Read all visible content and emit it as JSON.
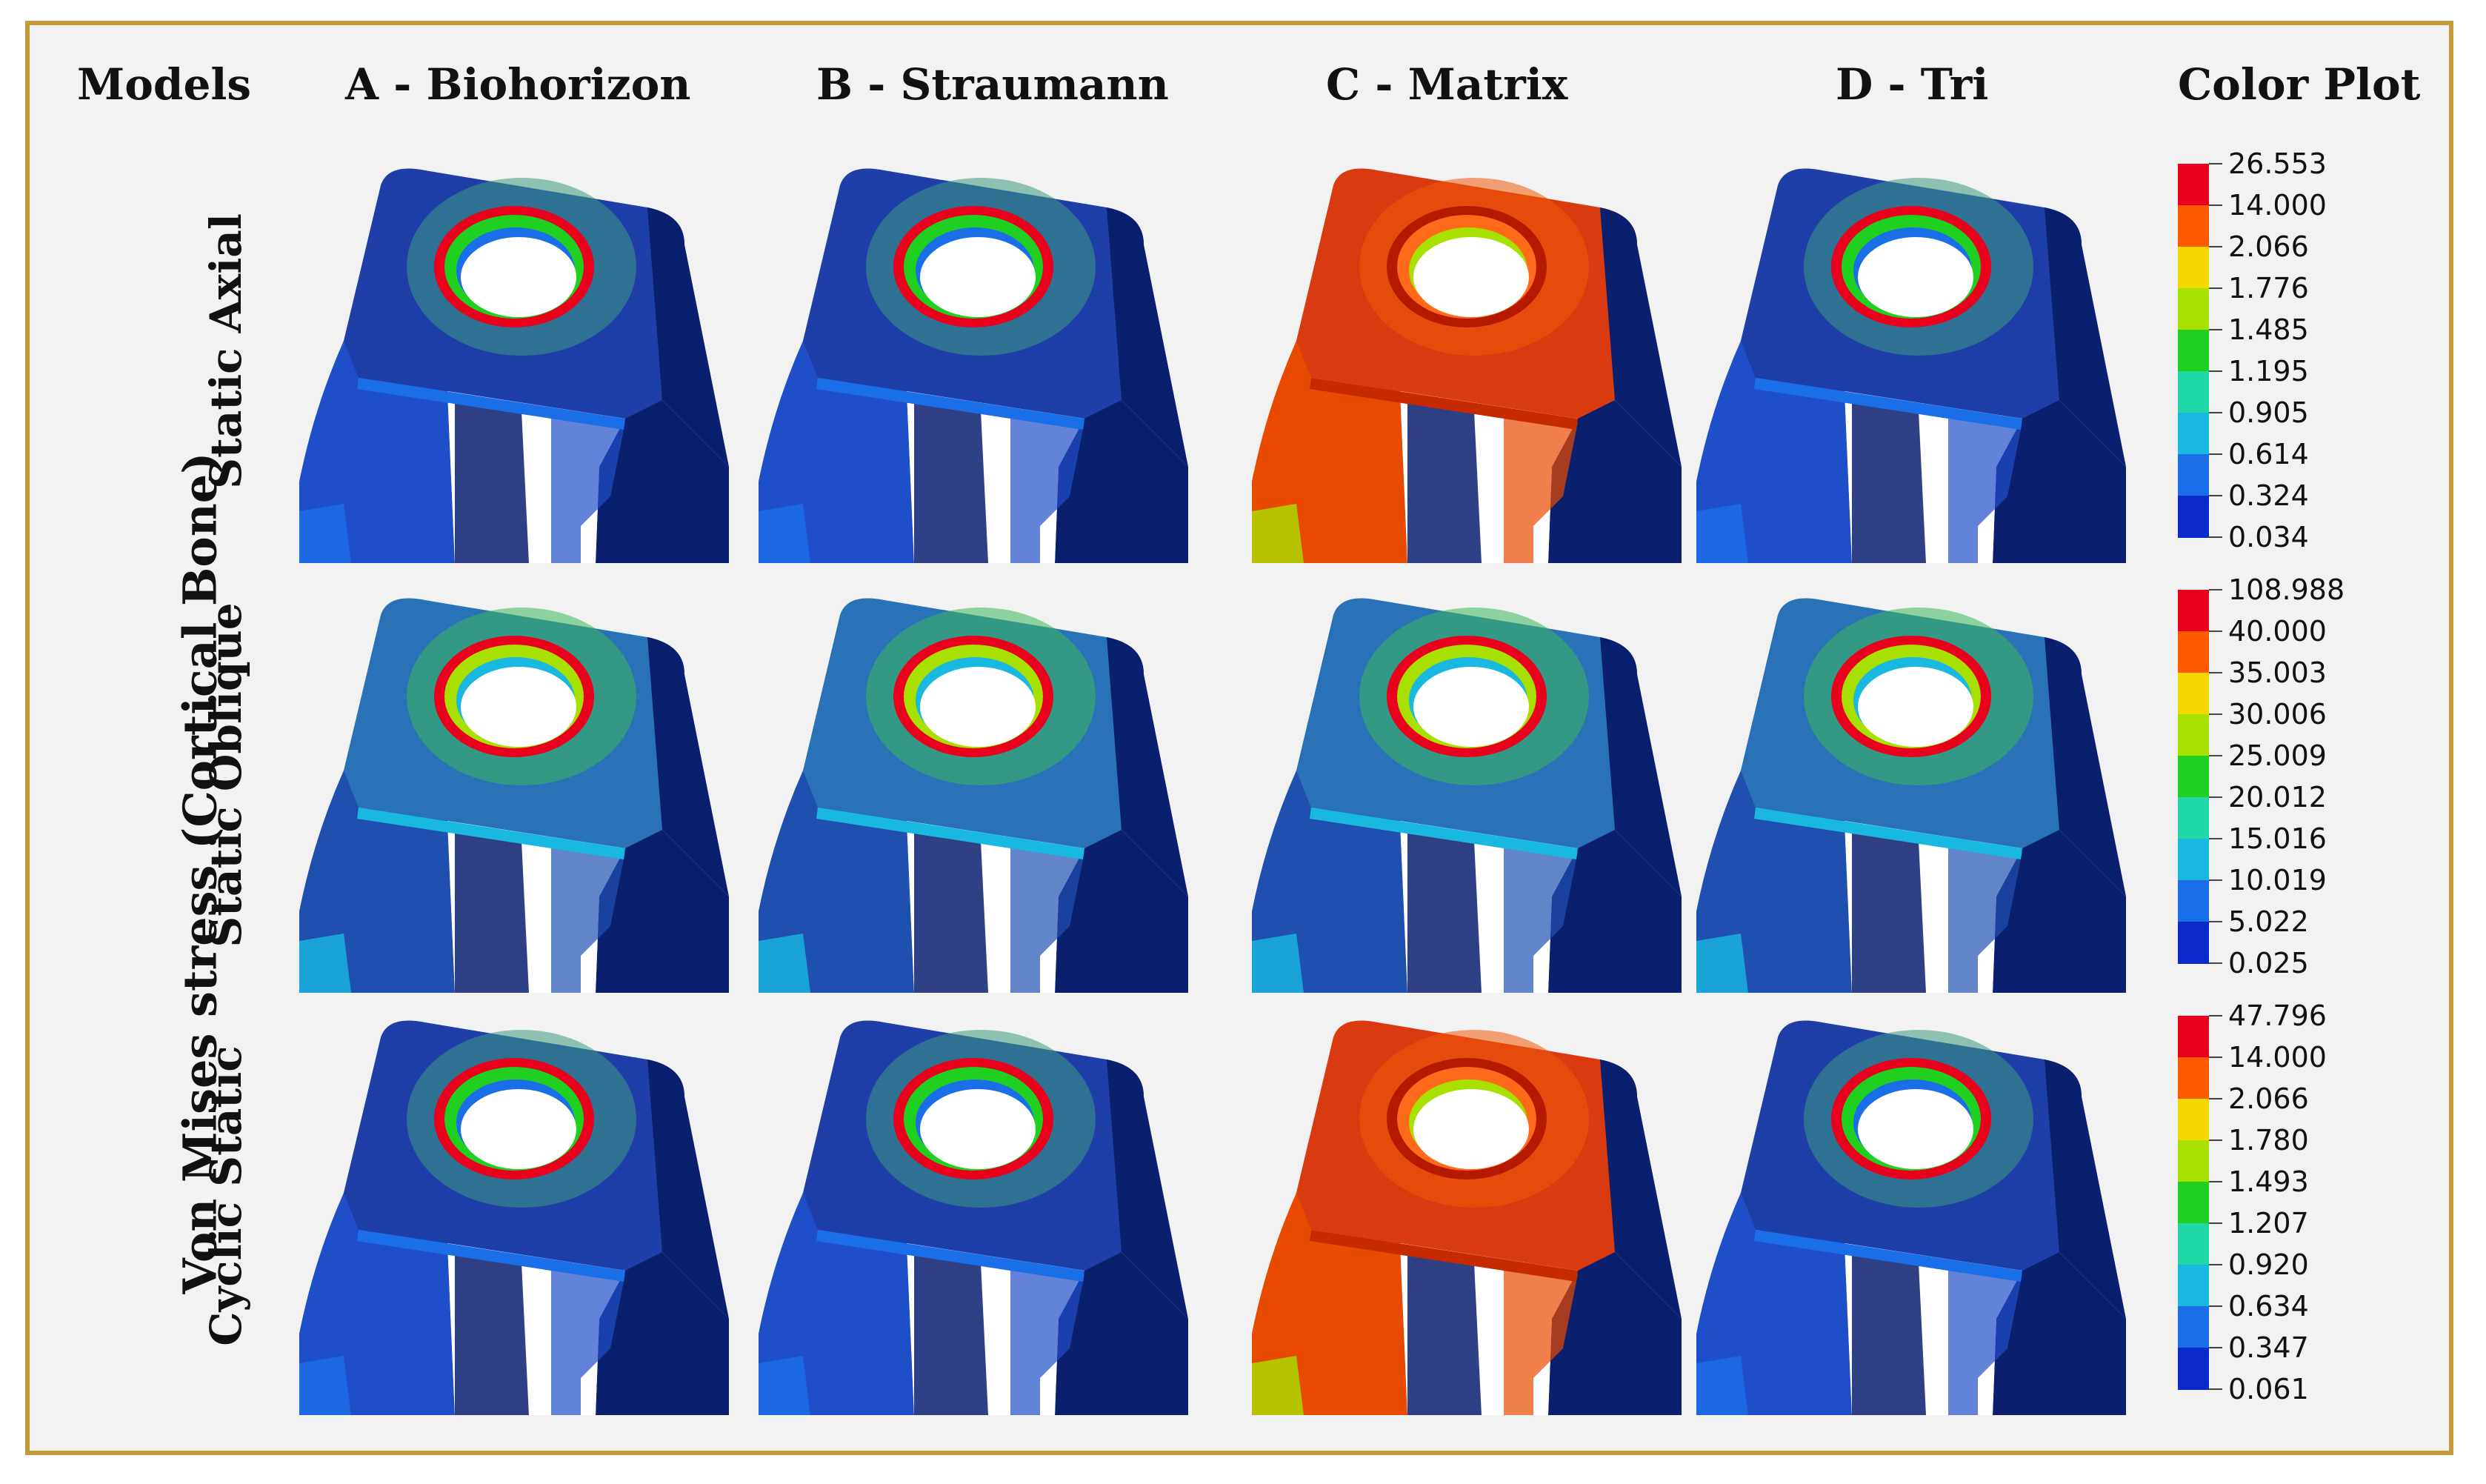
{
  "headers": {
    "models": "Models",
    "columns": [
      "A - Biohorizon",
      "B - Straumann",
      "C - Matrix",
      "D - Tri"
    ],
    "color_plot": "Color Plot"
  },
  "side_label": "Von Mises stress (Cortical Bone)",
  "rows": [
    "Static Axial",
    "Static Oblique",
    "Cyclic Static"
  ],
  "legends": [
    {
      "values": [
        "26.553",
        "14.000",
        "2.066",
        "1.776",
        "1.485",
        "1.195",
        "0.905",
        "0.614",
        "0.324",
        "0.034"
      ]
    },
    {
      "values": [
        "108.988",
        "40.000",
        "35.003",
        "30.006",
        "25.009",
        "20.012",
        "15.016",
        "10.019",
        "5.022",
        "0.025"
      ]
    },
    {
      "values": [
        "47.796",
        "14.000",
        "2.066",
        "1.780",
        "1.493",
        "1.207",
        "0.920",
        "0.634",
        "0.347",
        "0.061"
      ]
    }
  ],
  "colors": {
    "scale": [
      "#e8001c",
      "#ff5a00",
      "#f5d800",
      "#a8e000",
      "#20d020",
      "#1ed8a8",
      "#18b8e0",
      "#1a6ee8",
      "#0a2acc"
    ],
    "base_blue": "#1f3fa8",
    "deep_blue": "#0a1f6e",
    "frame": "#c49a3c"
  },
  "panel_scheme": [
    [
      "blue",
      "blue",
      "red",
      "blue"
    ],
    [
      "cyan",
      "cyan",
      "cyan",
      "cyan"
    ],
    [
      "blue",
      "blue",
      "red",
      "blue"
    ]
  ]
}
